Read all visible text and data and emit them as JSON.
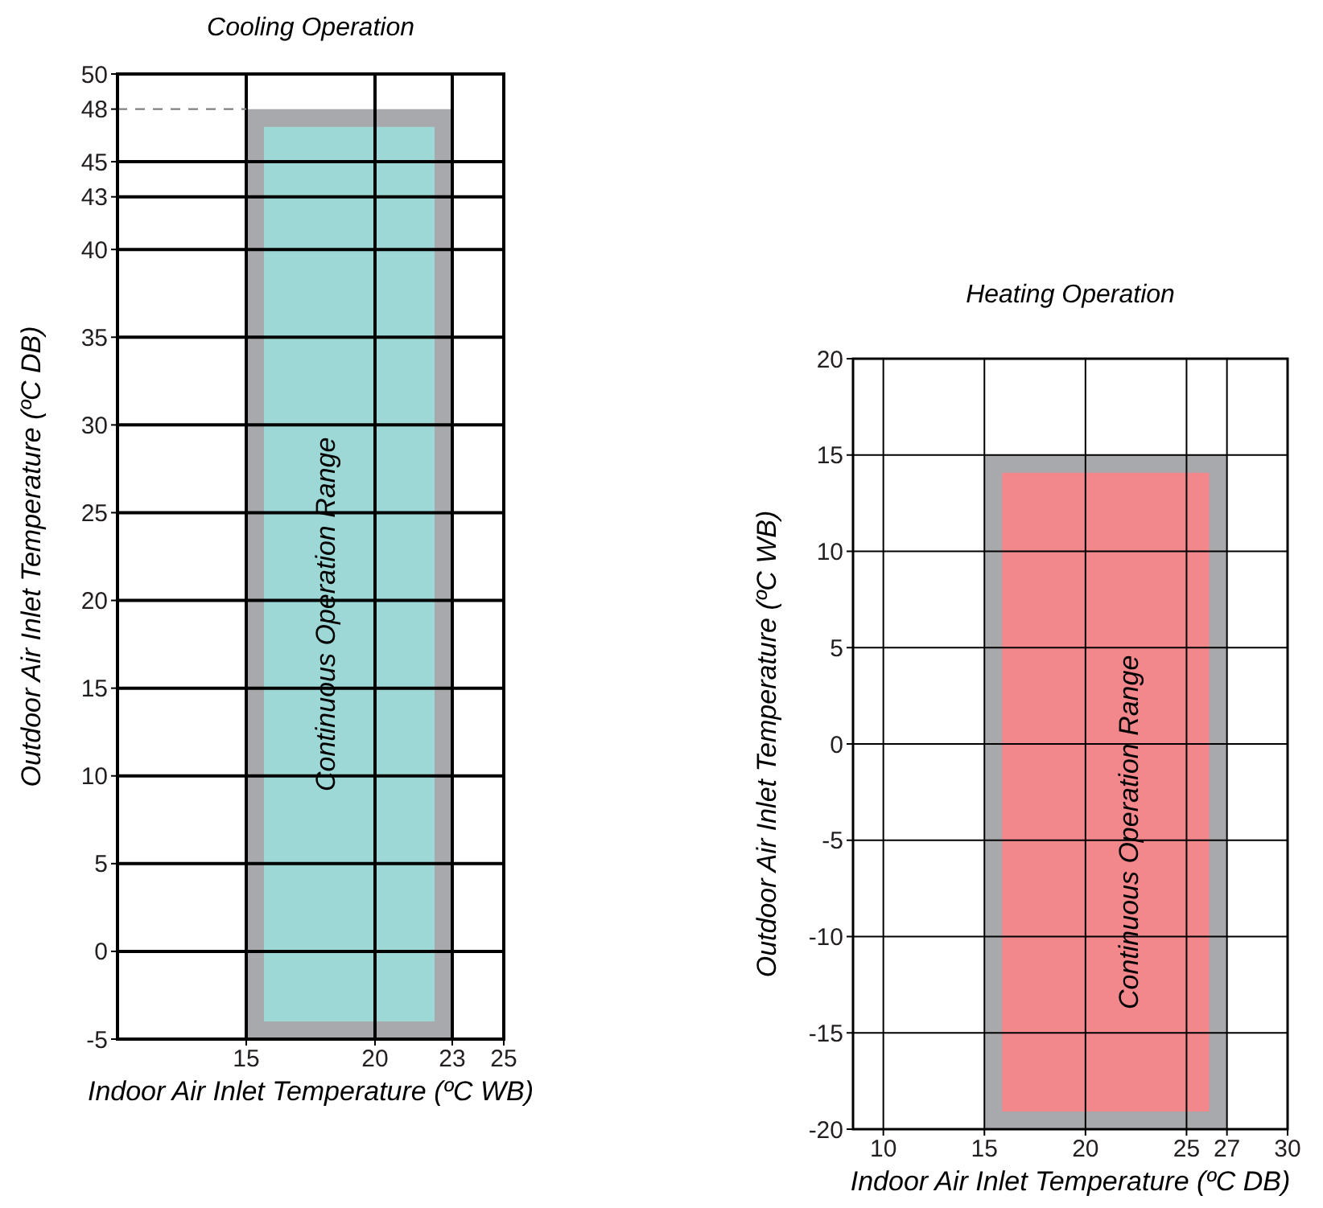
{
  "chart_data": [
    {
      "type": "area",
      "title": "Cooling Operation",
      "xlabel": "Indoor Air Inlet Temperature (ºC WB)",
      "ylabel": "Outdoor Air Inlet Temperature (ºC DB)",
      "xlim": [
        10,
        25
      ],
      "xticks": [
        15,
        20,
        23,
        25
      ],
      "ylim": [
        -5,
        50
      ],
      "yticks": [
        -5,
        0,
        5,
        10,
        15,
        20,
        25,
        30,
        35,
        40,
        43,
        45,
        48,
        50
      ],
      "grid": true,
      "series": [
        {
          "x": [
            15,
            15,
            23,
            23
          ],
          "values": [
            -5,
            48,
            48,
            -5
          ],
          "color": "#9dd8d6"
        }
      ],
      "ref_lines": [
        {
          "axis": "y",
          "value": 48,
          "color": "#808080",
          "line_style": "dashed"
        }
      ],
      "annotations": [
        "Continuous Operation Range"
      ]
    },
    {
      "type": "area",
      "title": "Heating Operation",
      "xlabel": "Indoor Air Inlet Temperature (ºC DB)",
      "ylabel": "Outdoor Air Inlet Temperature (ºC WB)",
      "xlim": [
        8.5,
        30
      ],
      "xticks": [
        10,
        15,
        20,
        25,
        27,
        30
      ],
      "ylim": [
        -20,
        20
      ],
      "yticks": [
        -20,
        -15,
        -10,
        -5,
        0,
        5,
        10,
        15,
        20
      ],
      "grid": true,
      "series": [
        {
          "x": [
            15,
            15,
            27,
            27
          ],
          "values": [
            -20,
            15,
            15,
            -20
          ],
          "color": "#f2878c"
        }
      ],
      "annotations": [
        "Continuous Operation Range"
      ]
    }
  ]
}
